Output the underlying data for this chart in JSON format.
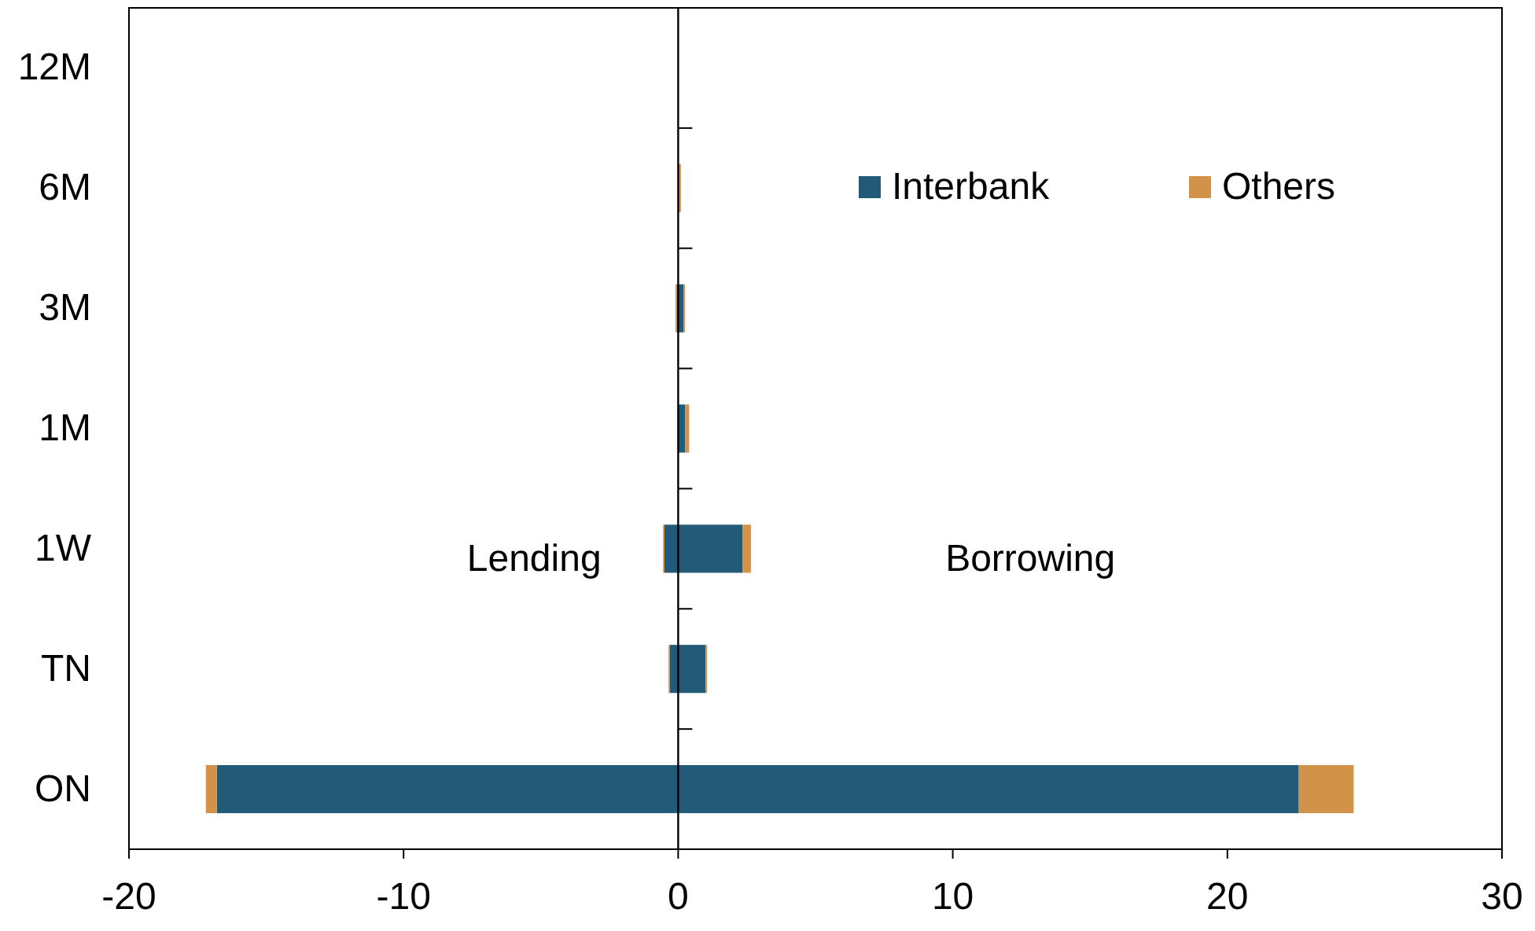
{
  "chart_data": {
    "type": "bar",
    "orientation": "horizontal",
    "stacked": true,
    "categories": [
      "12M",
      "6M",
      "3M",
      "1M",
      "1W",
      "TN",
      "ON"
    ],
    "series": [
      {
        "name": "Interbank",
        "color": "#235a78",
        "values": [
          0,
          0,
          0.2,
          0.25,
          2.35,
          1.0,
          22.6
        ]
      },
      {
        "name": "Others",
        "color": "#d39249",
        "values": [
          0,
          0.1,
          0.05,
          0.15,
          0.3,
          0.05,
          2.0
        ]
      },
      {
        "color": "#235a78",
        "values": [
          0,
          0,
          -0.05,
          0,
          -0.5,
          -0.3,
          -16.8
        ]
      },
      {
        "color": "#d39249",
        "values": [
          0,
          0,
          -0.05,
          0,
          -0.05,
          -0.05,
          -0.4
        ]
      }
    ],
    "xlim": [
      -20,
      30
    ],
    "xticks": [
      -20,
      -10,
      0,
      10,
      20,
      30
    ],
    "annotations": [
      "Lending",
      "Borrowing"
    ],
    "legend": "top right"
  }
}
